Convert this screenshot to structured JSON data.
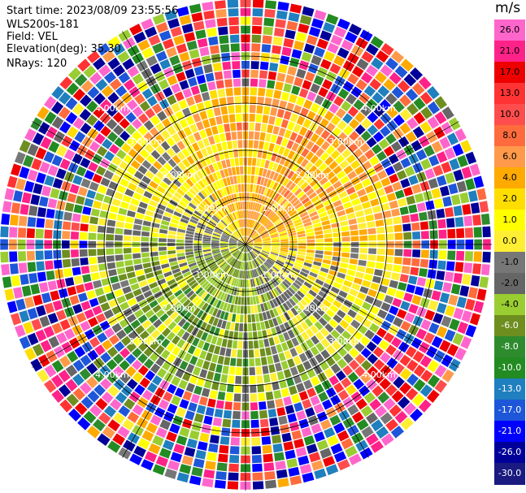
{
  "info": {
    "start_time": "Start time: 2023/08/09 23:55:56",
    "instrument": "WLS200s-181",
    "field": "Field: VEL",
    "elevation": "Elevation(deg): 35.30",
    "nrays": "NRays: 120"
  },
  "colorbar": {
    "unit": "m/s",
    "ticks": [
      "26.0",
      "21.0",
      "17.0",
      "13.0",
      "10.0",
      "8.0",
      "6.0",
      "4.0",
      "2.0",
      "1.0",
      "0.0",
      "-1.0",
      "-2.0",
      "-4.0",
      "-6.0",
      "-8.0",
      "-10.0",
      "-13.0",
      "-17.0",
      "-21.0",
      "-26.0",
      "-30.0"
    ],
    "colors": [
      "#ff66cc",
      "#ff2288",
      "#ee0000",
      "#ff3333",
      "#ff4d4d",
      "#ff6b3d",
      "#ff9a4a",
      "#ffaa00",
      "#ffdd00",
      "#ffff00",
      "#ffee33",
      "#777777",
      "#666666",
      "#9acd32",
      "#6e8e1f",
      "#2e8b2e",
      "#228b22",
      "#1f7fbf",
      "#1e56d9",
      "#0000ff",
      "#000099",
      "#1a1a80"
    ]
  },
  "chart_data": {
    "type": "heatmap",
    "projection": "polar PPI",
    "nrays": 120,
    "range_rings_km": [
      1.0,
      2.0,
      3.0,
      4.0
    ],
    "ring_labels": [
      "1.00km",
      "2.00km",
      "3.00km",
      "4.00km"
    ],
    "velocity_range": [
      -30.0,
      26.0
    ],
    "unit": "m/s",
    "sectors": [
      {
        "direction": "north",
        "dominant_velocity": 8.0
      },
      {
        "direction": "north-east",
        "dominant_velocity": 2.0
      },
      {
        "direction": "east",
        "dominant_velocity": 1.0
      },
      {
        "direction": "south-east",
        "dominant_velocity": 2.0
      },
      {
        "direction": "south",
        "dominant_velocity": -6.0
      },
      {
        "direction": "south-west",
        "dominant_velocity": -4.0
      },
      {
        "direction": "west",
        "dominant_velocity": -2.0
      },
      {
        "direction": "north-west",
        "dominant_velocity": 2.0
      }
    ]
  }
}
